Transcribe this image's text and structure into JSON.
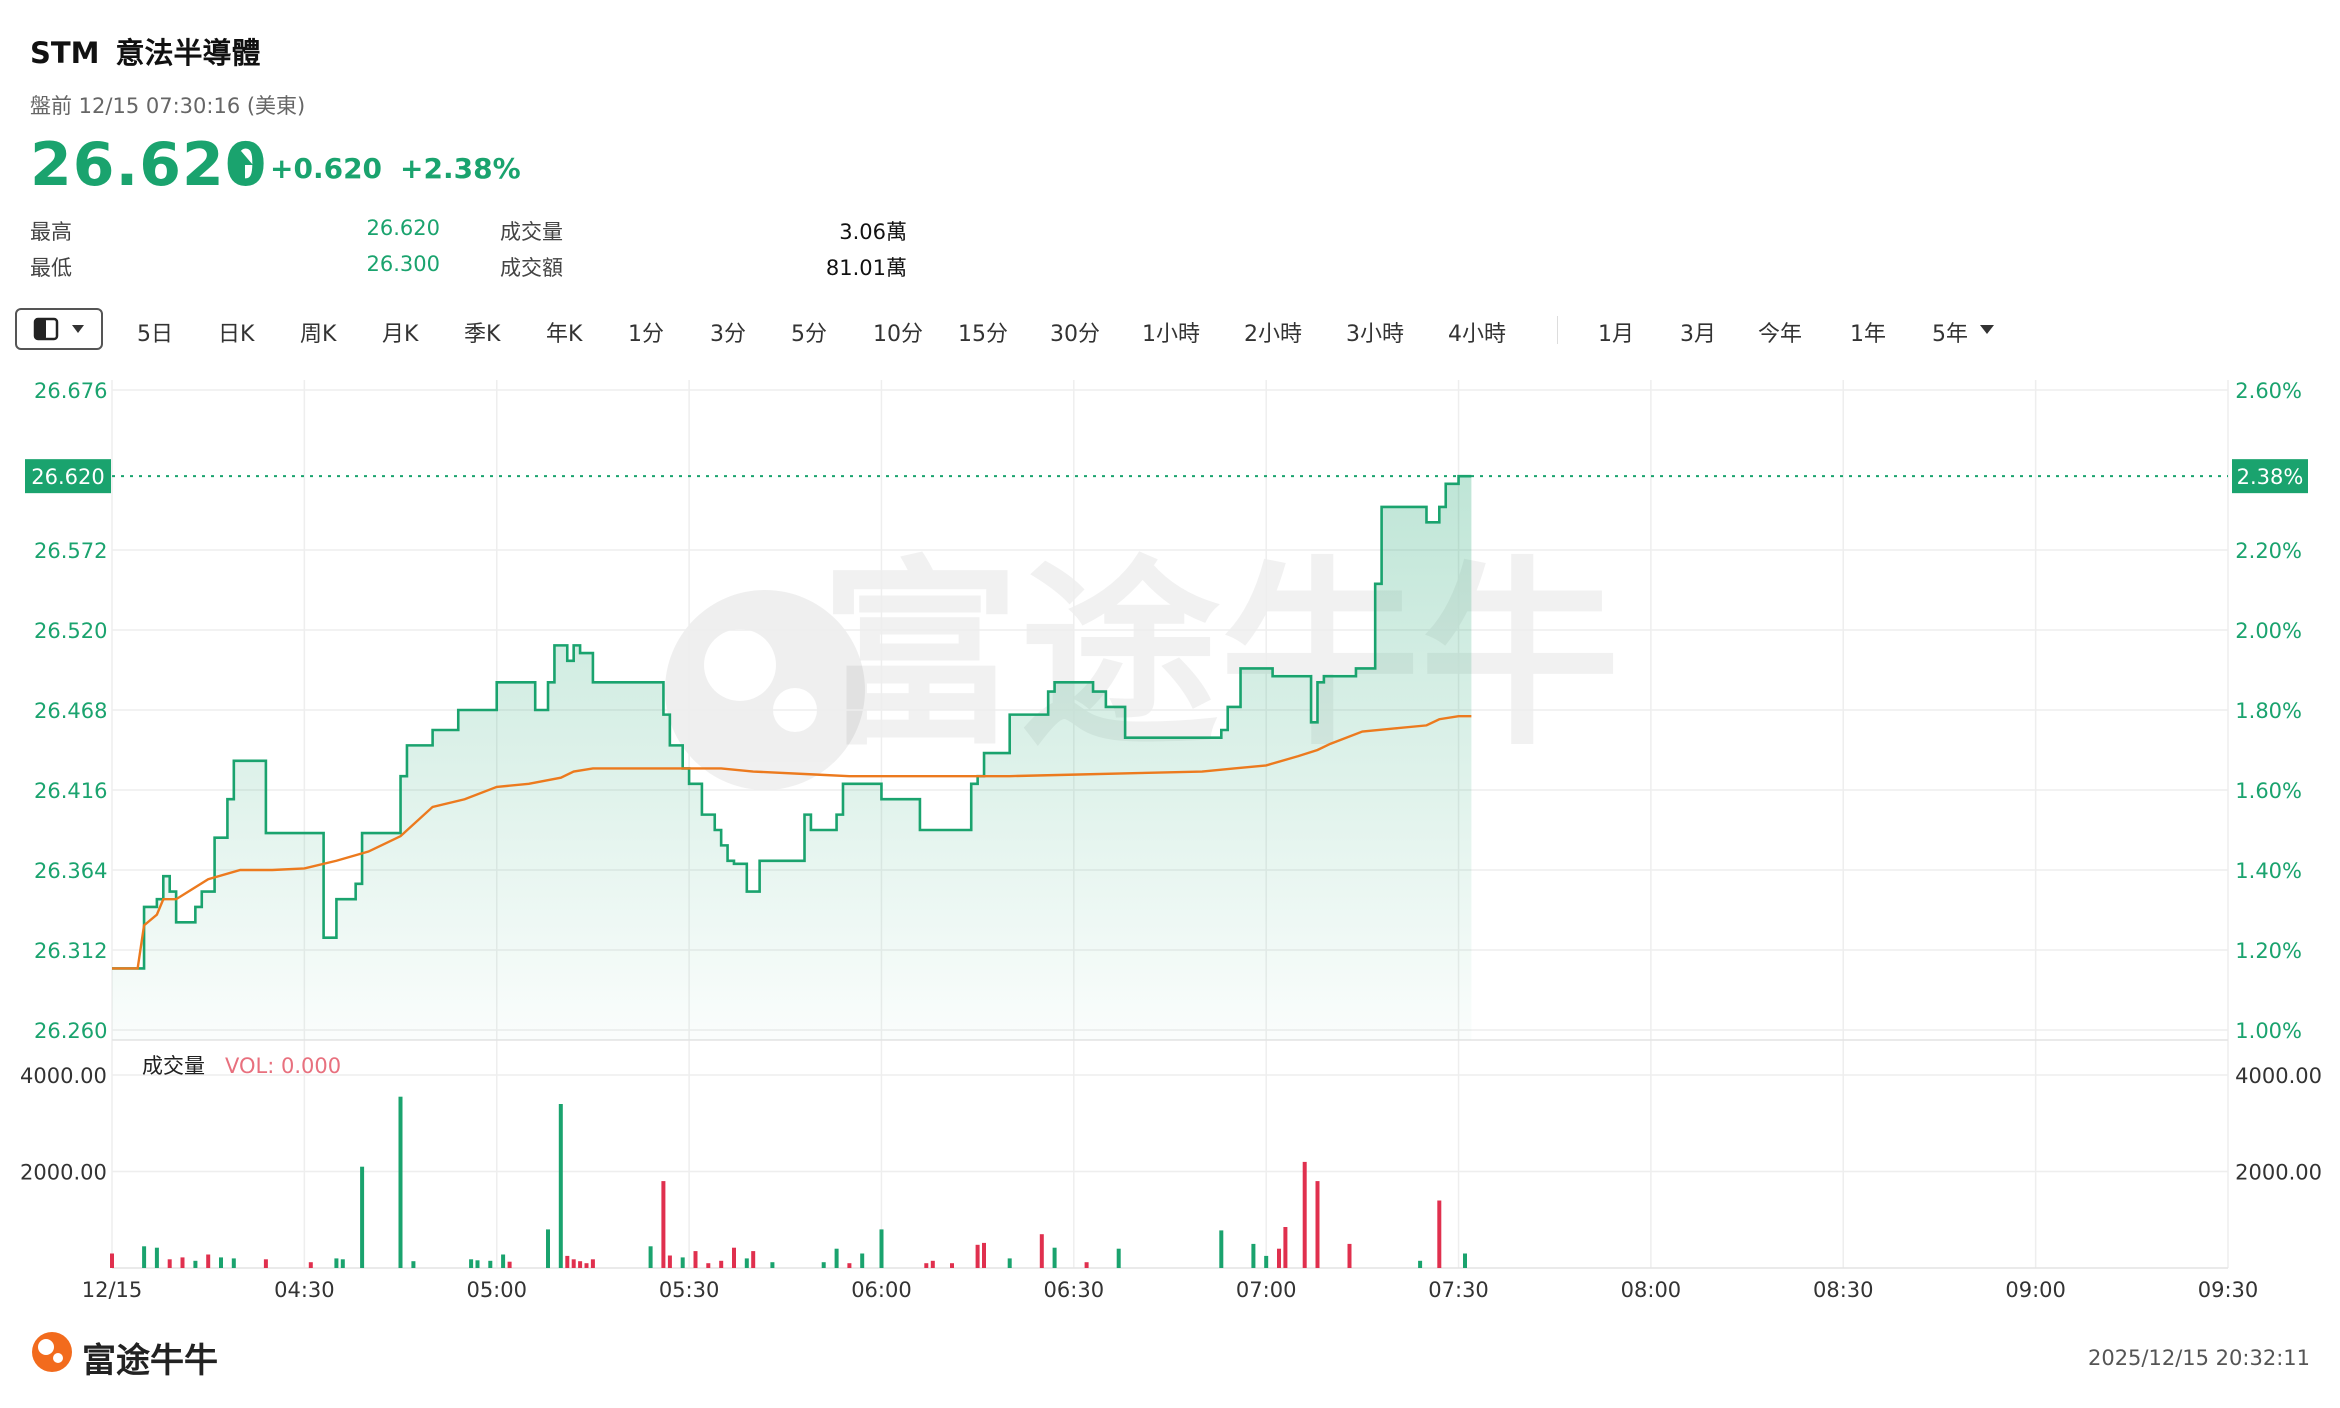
{
  "header": {
    "symbol": "STM",
    "name": "意法半導體",
    "session": "盤前 12/15 07:30:16 (美東)",
    "price": "26.620",
    "change": "+0.620",
    "change_pct": "+2.38%"
  },
  "stats": {
    "high_label": "最高",
    "high": "26.620",
    "low_label": "最低",
    "low": "26.300",
    "volume_label": "成交量",
    "volume": "3.06萬",
    "turnover_label": "成交額",
    "turnover": "81.01萬"
  },
  "toolbar": {
    "periods": [
      "5日",
      "日K",
      "周K",
      "月K",
      "季K",
      "年K",
      "1分",
      "3分",
      "5分",
      "10分",
      "15分",
      "30分",
      "1小時",
      "2小時",
      "3小時",
      "4小時"
    ],
    "ranges": [
      "1月",
      "3月",
      "今年",
      "1年",
      "5年"
    ]
  },
  "colors": {
    "up": "#1aa36e",
    "avg": "#ec7a1e",
    "down_bar": "#e0304e",
    "grid": "#eeeeee"
  },
  "chart_data": [
    {
      "type": "line",
      "y_ticks": [
        "26.676",
        "26.620",
        "26.572",
        "26.520",
        "26.468",
        "26.416",
        "26.364",
        "26.312",
        "26.260"
      ],
      "y_ticks_right": [
        "2.60%",
        "2.38%",
        "2.20%",
        "2.00%",
        "1.80%",
        "1.60%",
        "1.40%",
        "1.20%",
        "1.00%"
      ],
      "ylim": [
        26.26,
        26.676
      ],
      "x_ticks": [
        "12/15",
        "04:30",
        "05:00",
        "05:30",
        "06:00",
        "06:30",
        "07:00",
        "07:30",
        "08:00",
        "08:30",
        "09:00",
        "09:30"
      ],
      "xlim": [
        "04:00",
        "09:30"
      ],
      "current_price_label": "26.620",
      "current_pct_label": "2.38%",
      "series": [
        {
          "x": [
            "04:00",
            "04:04",
            "04:05",
            "04:07",
            "04:08",
            "04:09",
            "04:10",
            "04:13",
            "04:14",
            "04:16",
            "04:18",
            "04:19",
            "04:22",
            "04:24",
            "04:27",
            "04:28",
            "04:33",
            "04:34",
            "04:35",
            "04:38",
            "04:39",
            "04:44",
            "04:45",
            "04:46",
            "04:50",
            "04:53",
            "04:54",
            "04:59",
            "05:00",
            "05:05",
            "05:06",
            "05:08",
            "05:09",
            "05:11",
            "05:12",
            "05:13",
            "05:15",
            "05:16",
            "05:24",
            "05:26",
            "05:27",
            "05:29",
            "05:30",
            "05:31",
            "05:32",
            "05:34",
            "05:35",
            "05:36",
            "05:37",
            "05:39",
            "05:40",
            "05:41",
            "05:47",
            "05:48",
            "05:49",
            "05:53",
            "05:54",
            "06:00",
            "06:01",
            "06:06",
            "06:07",
            "06:14",
            "06:15",
            "06:16",
            "06:17",
            "06:20",
            "06:21",
            "06:26",
            "06:27",
            "06:33",
            "06:34",
            "06:35",
            "06:37",
            "06:38",
            "06:39",
            "06:53",
            "06:54",
            "06:56",
            "06:57",
            "07:00",
            "07:01",
            "07:06",
            "07:07",
            "07:08",
            "07:09",
            "07:10",
            "07:11",
            "07:14",
            "07:15",
            "07:17",
            "07:18",
            "07:25",
            "07:26",
            "07:27",
            "07:28",
            "07:30",
            "07:31",
            "07:32"
          ],
          "y": [
            26.3,
            26.3,
            26.34,
            26.345,
            26.36,
            26.35,
            26.33,
            26.34,
            26.35,
            26.385,
            26.41,
            26.435,
            26.435,
            26.388,
            26.388,
            26.388,
            26.32,
            26.32,
            26.345,
            26.355,
            26.388,
            26.388,
            26.425,
            26.445,
            26.455,
            26.455,
            26.468,
            26.468,
            26.486,
            26.486,
            26.468,
            26.486,
            26.51,
            26.5,
            26.51,
            26.505,
            26.486,
            26.486,
            26.486,
            26.465,
            26.445,
            26.43,
            26.42,
            26.42,
            26.4,
            26.39,
            26.38,
            26.37,
            26.368,
            26.35,
            26.35,
            26.37,
            26.37,
            26.4,
            26.39,
            26.4,
            26.42,
            26.41,
            26.41,
            26.39,
            26.39,
            26.42,
            26.425,
            26.44,
            26.44,
            26.465,
            26.465,
            26.48,
            26.486,
            26.48,
            26.48,
            26.47,
            26.47,
            26.45,
            26.45,
            26.455,
            26.47,
            26.495,
            26.495,
            26.495,
            26.49,
            26.49,
            26.46,
            26.486,
            26.49,
            26.49,
            26.49,
            26.495,
            26.495,
            26.55,
            26.6,
            26.59,
            26.59,
            26.6,
            26.615,
            26.62,
            26.62,
            26.62
          ],
          "color": "#1aa36e"
        },
        {
          "x": [
            "04:00",
            "04:04",
            "04:05",
            "04:07",
            "04:08",
            "04:10",
            "04:15",
            "04:20",
            "04:25",
            "04:30",
            "04:35",
            "04:40",
            "04:45",
            "04:50",
            "04:55",
            "05:00",
            "05:05",
            "05:10",
            "05:12",
            "05:15",
            "05:20",
            "05:25",
            "05:30",
            "05:35",
            "05:40",
            "05:50",
            "05:55",
            "06:00",
            "06:10",
            "06:20",
            "06:30",
            "06:40",
            "06:50",
            "06:55",
            "07:00",
            "07:05",
            "07:08",
            "07:10",
            "07:15",
            "07:20",
            "07:25",
            "07:27",
            "07:30",
            "07:32"
          ],
          "y": [
            26.3,
            26.3,
            26.328,
            26.335,
            26.345,
            26.345,
            26.358,
            26.364,
            26.364,
            26.365,
            26.37,
            26.376,
            26.386,
            26.405,
            26.41,
            26.418,
            26.42,
            26.424,
            26.428,
            26.43,
            26.43,
            26.43,
            26.43,
            26.43,
            26.428,
            26.426,
            26.425,
            26.425,
            26.425,
            26.425,
            26.426,
            26.427,
            26.428,
            26.43,
            26.432,
            26.438,
            26.442,
            26.446,
            26.454,
            26.456,
            26.458,
            26.462,
            26.464,
            26.464
          ],
          "color": "#ec7a1e"
        }
      ]
    },
    {
      "type": "bar",
      "title": "成交量",
      "legend": "VOL: 0.000",
      "y_ticks": [
        "4000.00",
        "2000.00"
      ],
      "ylim": [
        0,
        4000
      ],
      "x": [
        "04:00",
        "04:05",
        "04:07",
        "04:09",
        "04:11",
        "04:13",
        "04:15",
        "04:17",
        "04:19",
        "04:24",
        "04:31",
        "04:35",
        "04:36",
        "04:39",
        "04:45",
        "04:47",
        "04:56",
        "04:57",
        "04:59",
        "05:01",
        "05:02",
        "05:08",
        "05:10",
        "05:11",
        "05:12",
        "05:13",
        "05:14",
        "05:15",
        "05:24",
        "05:26",
        "05:27",
        "05:29",
        "05:31",
        "05:33",
        "05:35",
        "05:37",
        "05:39",
        "05:40",
        "05:43",
        "05:51",
        "05:53",
        "05:55",
        "05:57",
        "06:00",
        "06:07",
        "06:08",
        "06:11",
        "06:15",
        "06:16",
        "06:20",
        "06:25",
        "06:27",
        "06:32",
        "06:37",
        "06:53",
        "06:58",
        "07:00",
        "07:02",
        "07:03",
        "07:06",
        "07:08",
        "07:13",
        "07:24",
        "07:27",
        "07:31"
      ],
      "values": [
        300,
        450,
        420,
        180,
        220,
        150,
        280,
        220,
        200,
        180,
        120,
        200,
        180,
        2100,
        3550,
        140,
        180,
        160,
        150,
        280,
        130,
        800,
        3400,
        250,
        180,
        140,
        100,
        180,
        450,
        1800,
        260,
        220,
        350,
        100,
        150,
        420,
        200,
        350,
        120,
        120,
        400,
        100,
        300,
        800,
        100,
        150,
        100,
        480,
        520,
        200,
        700,
        420,
        120,
        400,
        780,
        500,
        250,
        400,
        850,
        2200,
        1800,
        500,
        150,
        1400,
        300
      ],
      "colors": [
        "down",
        "up",
        "up",
        "down",
        "down",
        "up",
        "down",
        "up",
        "up",
        "down",
        "down",
        "up",
        "up",
        "up",
        "up",
        "up",
        "up",
        "up",
        "up",
        "up",
        "down",
        "up",
        "up",
        "down",
        "down",
        "down",
        "down",
        "down",
        "up",
        "down",
        "down",
        "up",
        "down",
        "down",
        "down",
        "down",
        "up",
        "down",
        "up",
        "up",
        "up",
        "down",
        "up",
        "up",
        "down",
        "down",
        "down",
        "down",
        "down",
        "up",
        "down",
        "up",
        "down",
        "up",
        "up",
        "up",
        "up",
        "down",
        "down",
        "down",
        "down",
        "down",
        "up",
        "down",
        "up"
      ]
    }
  ],
  "footer": {
    "brand": "富途牛牛",
    "timestamp": "2025/12/15 20:32:11"
  }
}
